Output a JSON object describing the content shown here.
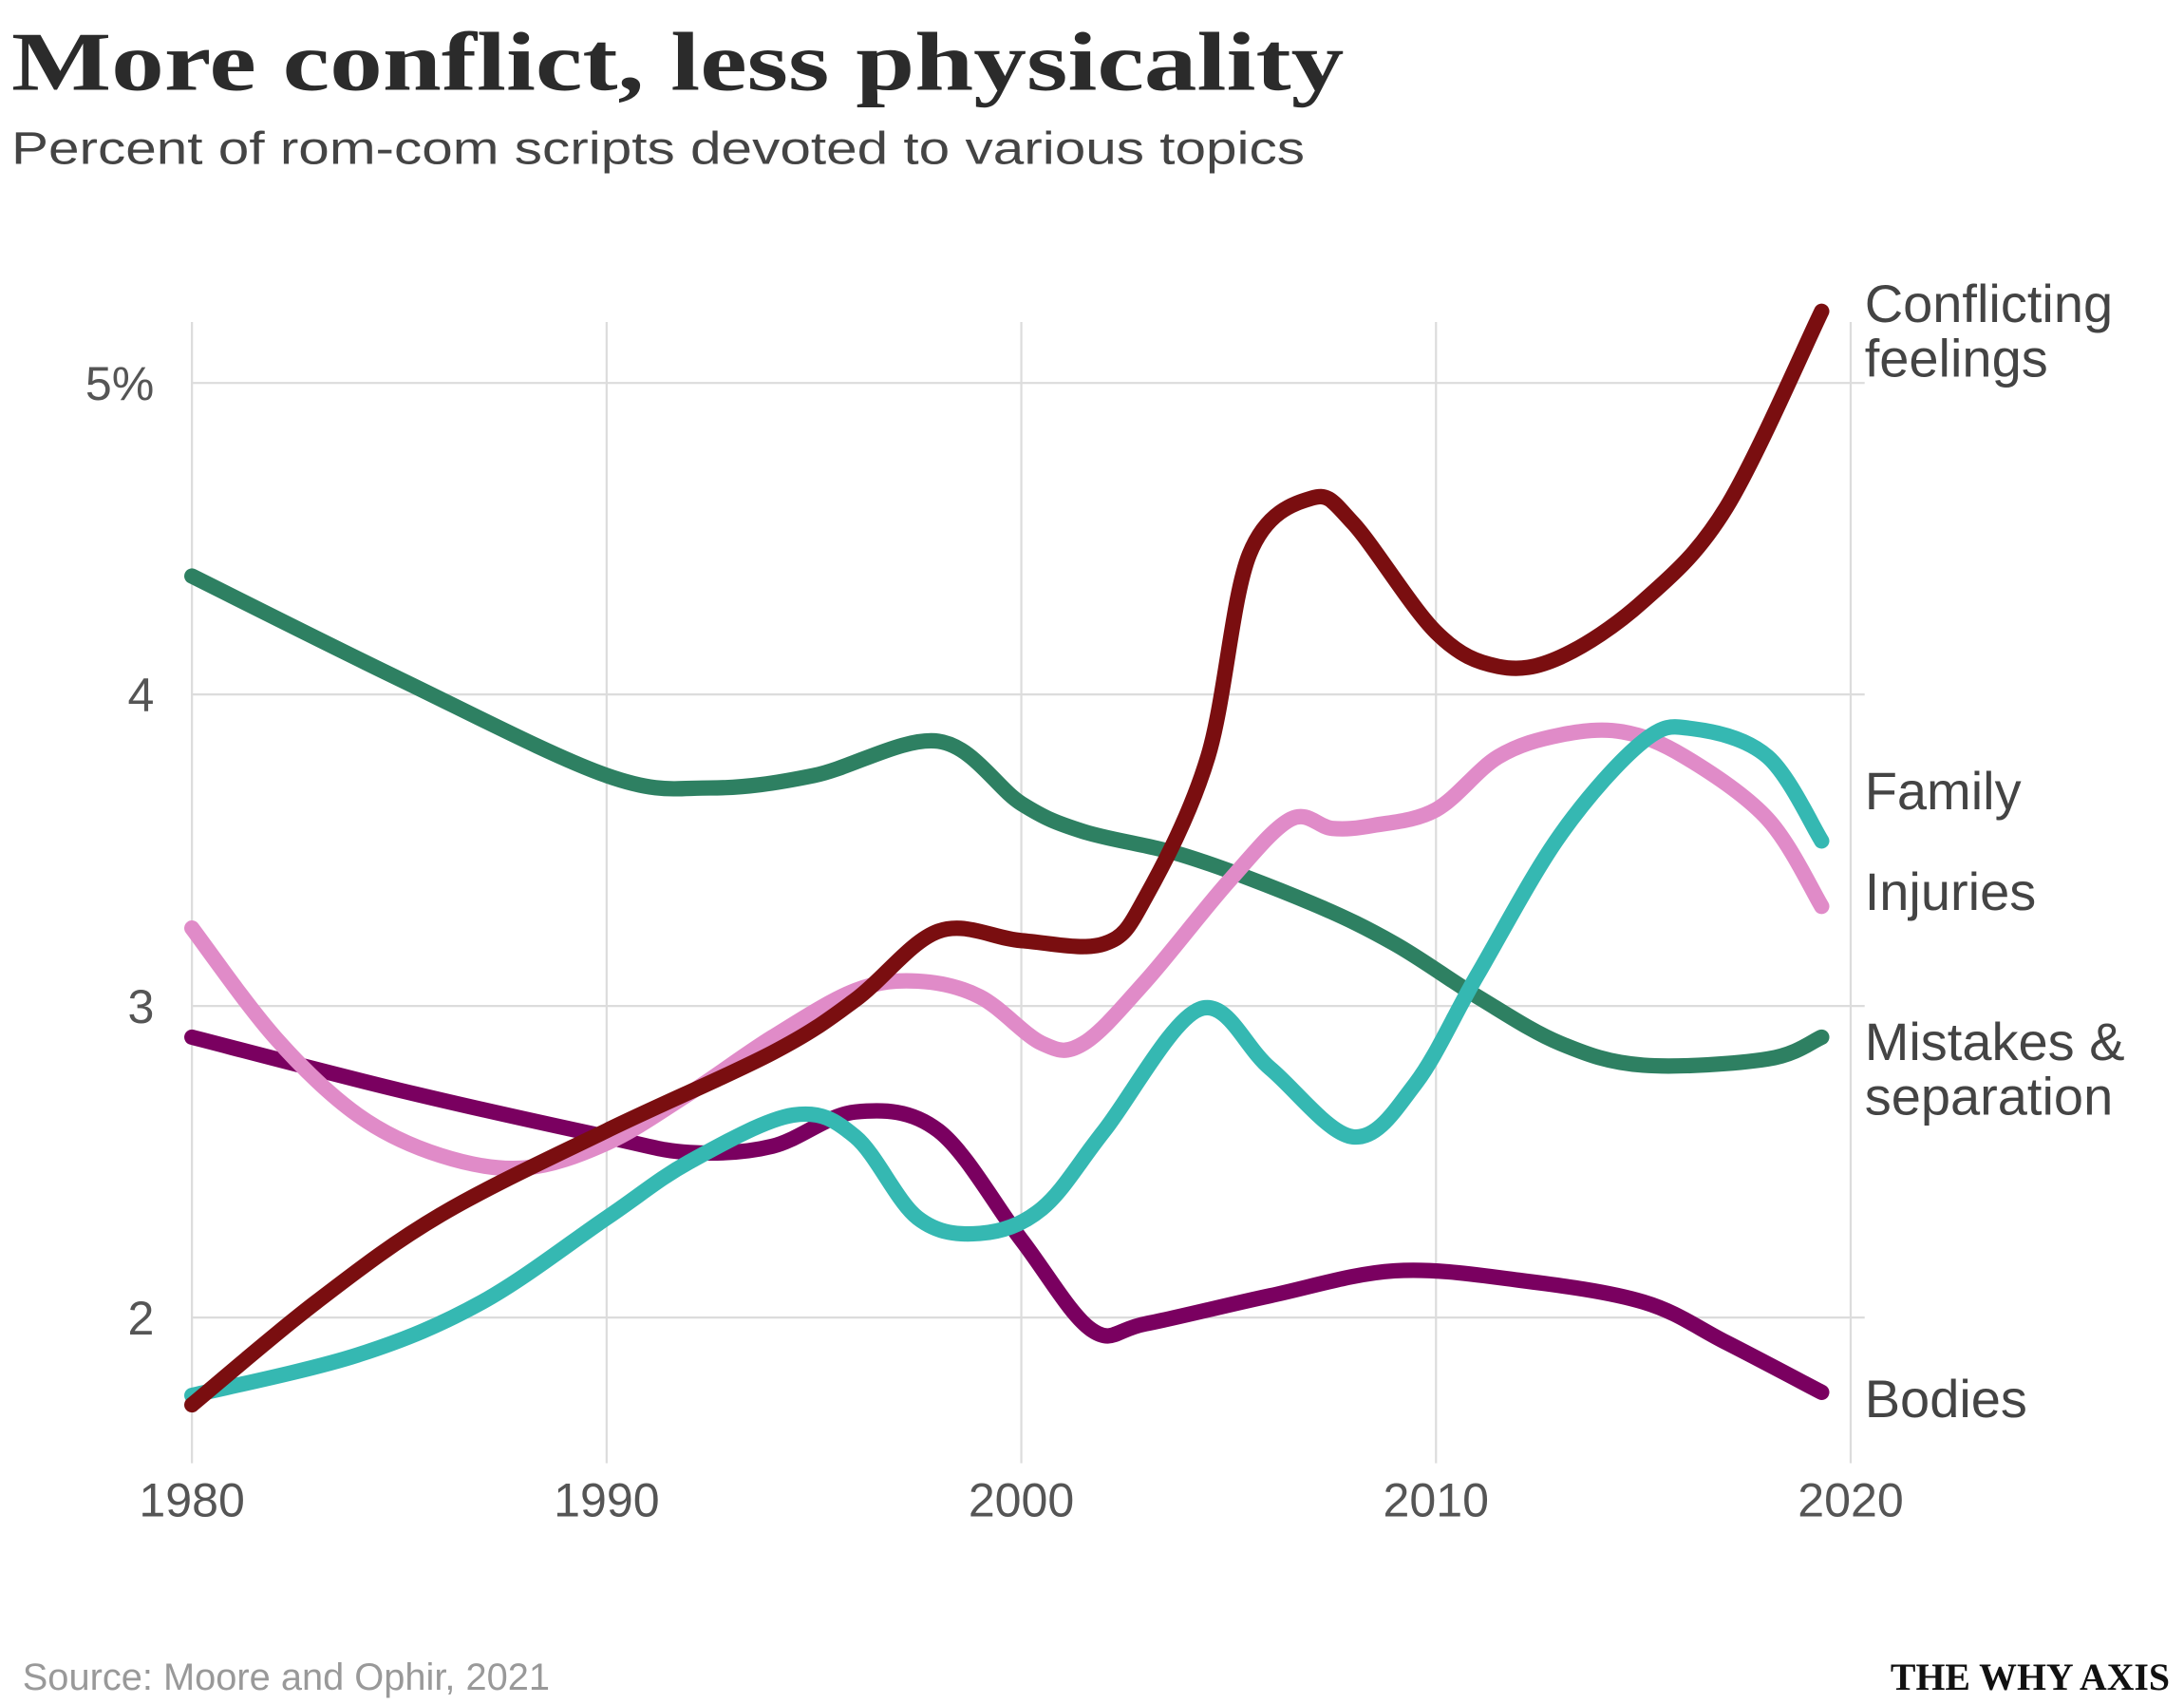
{
  "chart_data": {
    "type": "line",
    "title": "More conflict, less physicality",
    "subtitle": "Percent of rom-com scripts devoted to various topics",
    "xlabel": "",
    "ylabel": "",
    "xlim": [
      1980,
      2020
    ],
    "ylim": [
      1.6,
      5.25
    ],
    "x_ticks": [
      {
        "v": 1980,
        "label": "1980"
      },
      {
        "v": 1990,
        "label": "1990"
      },
      {
        "v": 2000,
        "label": "2000"
      },
      {
        "v": 2010,
        "label": "2010"
      },
      {
        "v": 2020,
        "label": "2020"
      }
    ],
    "y_ticks": [
      {
        "v": 5,
        "label": "5%"
      },
      {
        "v": 4,
        "label": "4"
      },
      {
        "v": 3,
        "label": "3"
      },
      {
        "v": 2,
        "label": "2"
      }
    ],
    "grid": true,
    "legend": "direct labels at right",
    "series": [
      {
        "name": "Mistakes & separation",
        "label_lines": [
          "Mistakes &",
          "separation"
        ],
        "color": "#2e8062",
        "x": [
          1980,
          1985,
          1990,
          1992.5,
          1995,
          1998,
          2000,
          2001.5,
          2004,
          2007,
          2009,
          2011,
          2013,
          2015,
          2018,
          2019.3
        ],
        "y": [
          4.38,
          4.05,
          3.74,
          3.7,
          3.74,
          3.85,
          3.65,
          3.56,
          3.48,
          3.33,
          3.2,
          3.03,
          2.88,
          2.81,
          2.83,
          2.9
        ]
      },
      {
        "name": "Bodies",
        "label_lines": [
          "Bodies"
        ],
        "color": "#7a0060",
        "x": [
          1980,
          1985,
          1990,
          1992,
          1994,
          1996,
          1998,
          2000,
          2001.7,
          2003,
          2006,
          2009,
          2012,
          2015,
          2017,
          2019.3
        ],
        "y": [
          2.9,
          2.73,
          2.58,
          2.53,
          2.55,
          2.66,
          2.6,
          2.25,
          1.96,
          1.98,
          2.07,
          2.15,
          2.12,
          2.05,
          1.92,
          1.76
        ]
      },
      {
        "name": "Injuries",
        "label_lines": [
          "Injuries"
        ],
        "color": "#e08bc8",
        "x": [
          1980,
          1982,
          1984,
          1986,
          1988,
          1990,
          1992,
          1994,
          1996,
          1997.5,
          1999,
          2000.5,
          2001.5,
          2003,
          2005,
          2006.5,
          2007.5,
          2008.5,
          2010,
          2011.5,
          2013,
          2014.5,
          2016,
          2018,
          2019.3
        ],
        "y": [
          3.25,
          2.9,
          2.65,
          2.52,
          2.48,
          2.56,
          2.72,
          2.9,
          3.05,
          3.08,
          3.03,
          2.88,
          2.88,
          3.08,
          3.4,
          3.6,
          3.57,
          3.58,
          3.63,
          3.8,
          3.87,
          3.88,
          3.8,
          3.6,
          3.32
        ]
      },
      {
        "name": "Family",
        "label_lines": [
          "Family"
        ],
        "color": "#35b8b2",
        "x": [
          1980,
          1984,
          1987,
          1990,
          1992,
          1994.5,
          1996,
          1997.5,
          1999,
          2000.5,
          2002,
          2004.3,
          2006,
          2008,
          2009.5,
          2011,
          2013,
          2015,
          2016.2,
          2018,
          2019.3
        ],
        "y": [
          1.75,
          1.88,
          2.05,
          2.32,
          2.5,
          2.65,
          2.58,
          2.32,
          2.27,
          2.35,
          2.6,
          2.99,
          2.8,
          2.58,
          2.75,
          3.1,
          3.55,
          3.85,
          3.89,
          3.8,
          3.53
        ]
      },
      {
        "name": "Conflicting feelings",
        "label_lines": [
          "Conflicting",
          "feelings"
        ],
        "color": "#7a0e10",
        "x": [
          1980,
          1983,
          1986,
          1990,
          1994,
          1996,
          1998,
          2000,
          2002,
          2003,
          2004.5,
          2005.5,
          2007,
          2008,
          2010,
          2011.5,
          2013,
          2015,
          2017,
          2019.3
        ],
        "y": [
          1.72,
          2.05,
          2.33,
          2.6,
          2.85,
          3.02,
          3.24,
          3.21,
          3.2,
          3.35,
          3.8,
          4.45,
          4.63,
          4.55,
          4.2,
          4.09,
          4.12,
          4.3,
          4.6,
          5.23
        ]
      }
    ]
  },
  "source": "Source: Moore and Ophir, 2021",
  "brand": "THE WHY AXIS"
}
